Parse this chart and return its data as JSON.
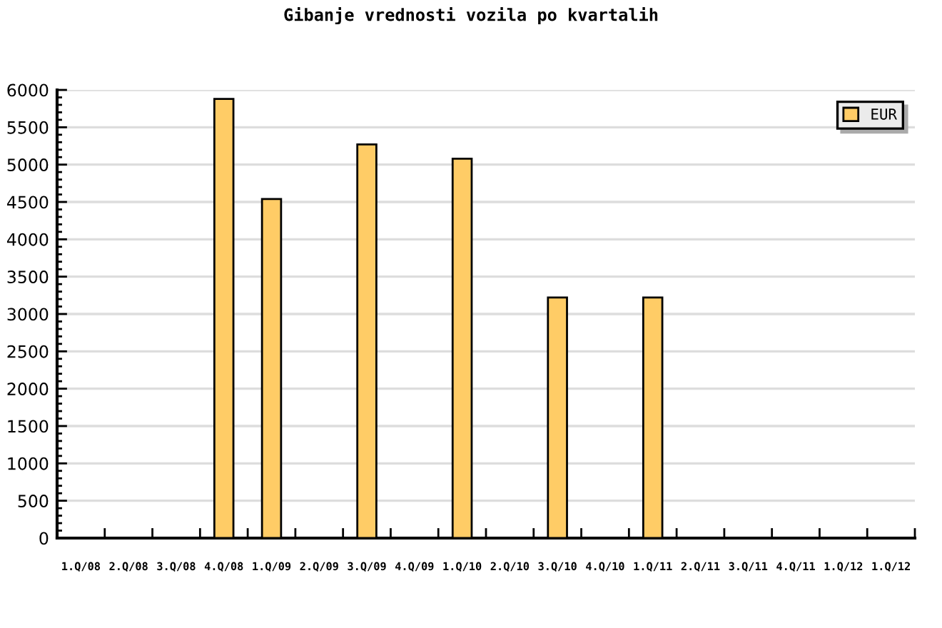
{
  "chart_data": {
    "type": "bar",
    "title": "Gibanje vrednosti vozila po kvartalih",
    "categories": [
      "1.Q/08",
      "2.Q/08",
      "3.Q/08",
      "4.Q/08",
      "1.Q/09",
      "2.Q/09",
      "3.Q/09",
      "4.Q/09",
      "1.Q/10",
      "2.Q/10",
      "3.Q/10",
      "4.Q/10",
      "1.Q/11",
      "2.Q/11",
      "3.Q/11",
      "4.Q/11",
      "1.Q/12",
      "1.Q/12"
    ],
    "series": [
      {
        "name": "EUR",
        "color": "#ffcc66",
        "values": [
          null,
          null,
          null,
          5880,
          4540,
          null,
          5270,
          null,
          5080,
          null,
          3220,
          null,
          3220,
          null,
          null,
          null,
          null,
          null
        ]
      }
    ],
    "ylim": [
      0,
      6000
    ],
    "yticks": [
      0,
      500,
      1000,
      1500,
      2000,
      2500,
      3000,
      3500,
      4000,
      4500,
      5000,
      5500,
      6000
    ],
    "grid": "y",
    "legend": "top right"
  }
}
